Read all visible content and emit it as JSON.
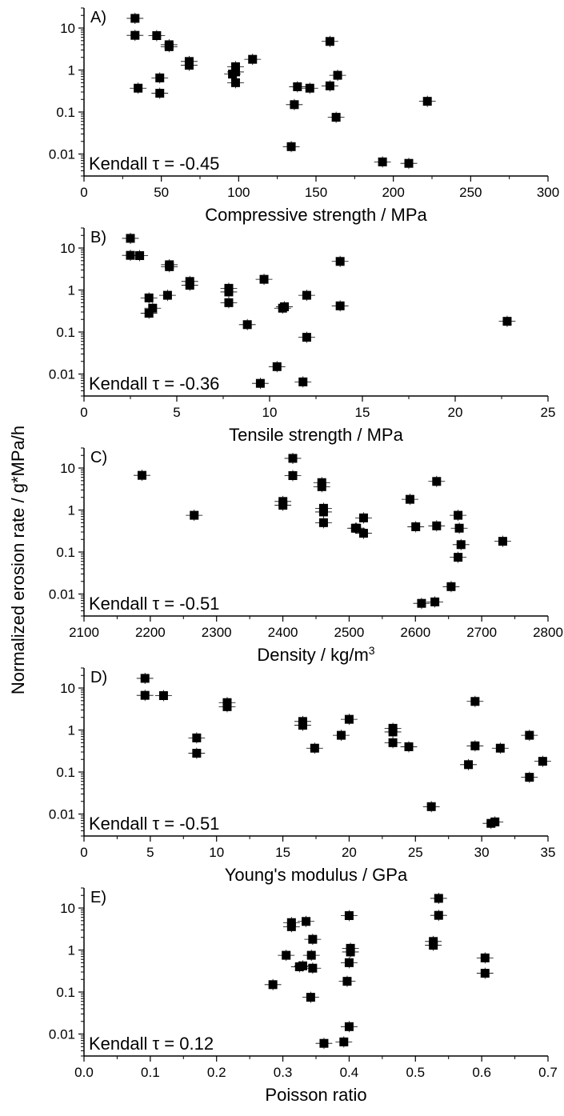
{
  "shared_ylabel": "Normalized erosion rate / g*MPa/h",
  "chart_data": [
    {
      "type": "scatter",
      "panel_label": "A)",
      "xlabel": "Compressive strength / MPa",
      "xlim": [
        0,
        300
      ],
      "xticks": [
        "0",
        "50",
        "100",
        "150",
        "200",
        "250",
        "300"
      ],
      "ylim": [
        0.003,
        30
      ],
      "yscale": "log",
      "yticks": [
        "0.01",
        "0.1",
        "1",
        "10"
      ],
      "annotation": "Kendall τ = -0.45",
      "points": [
        {
          "x": 33,
          "y": 17
        },
        {
          "x": 33,
          "y": 6.7
        },
        {
          "x": 35,
          "y": 0.37
        },
        {
          "x": 47,
          "y": 6.6
        },
        {
          "x": 49,
          "y": 0.65
        },
        {
          "x": 49,
          "y": 0.28
        },
        {
          "x": 55,
          "y": 4.0
        },
        {
          "x": 55,
          "y": 3.6
        },
        {
          "x": 68,
          "y": 1.6
        },
        {
          "x": 68,
          "y": 1.3
        },
        {
          "x": 96,
          "y": 0.8
        },
        {
          "x": 98,
          "y": 1.2
        },
        {
          "x": 98,
          "y": 0.9
        },
        {
          "x": 98,
          "y": 0.5
        },
        {
          "x": 109,
          "y": 1.8
        },
        {
          "x": 134,
          "y": 0.015
        },
        {
          "x": 136,
          "y": 0.15
        },
        {
          "x": 138,
          "y": 0.4
        },
        {
          "x": 146,
          "y": 0.37
        },
        {
          "x": 159,
          "y": 4.8
        },
        {
          "x": 159,
          "y": 0.42
        },
        {
          "x": 163,
          "y": 0.075
        },
        {
          "x": 164,
          "y": 0.75
        },
        {
          "x": 193,
          "y": 0.0065
        },
        {
          "x": 210,
          "y": 0.006
        },
        {
          "x": 222,
          "y": 0.18
        }
      ]
    },
    {
      "type": "scatter",
      "panel_label": "B)",
      "xlabel": "Tensile strength / MPa",
      "xlim": [
        0,
        25
      ],
      "xticks": [
        "0",
        "5",
        "10",
        "15",
        "20",
        "25"
      ],
      "ylim": [
        0.003,
        30
      ],
      "yscale": "log",
      "yticks": [
        "0.01",
        "0.1",
        "1",
        "10"
      ],
      "annotation": "Kendall τ = -0.36",
      "points": [
        {
          "x": 2.5,
          "y": 17
        },
        {
          "x": 2.5,
          "y": 6.7
        },
        {
          "x": 3.0,
          "y": 6.6
        },
        {
          "x": 3.5,
          "y": 0.65
        },
        {
          "x": 3.5,
          "y": 0.28
        },
        {
          "x": 3.7,
          "y": 0.37
        },
        {
          "x": 4.6,
          "y": 4.0
        },
        {
          "x": 4.6,
          "y": 3.6
        },
        {
          "x": 4.5,
          "y": 0.75
        },
        {
          "x": 5.7,
          "y": 1.6
        },
        {
          "x": 5.7,
          "y": 1.3
        },
        {
          "x": 7.8,
          "y": 1.1
        },
        {
          "x": 7.8,
          "y": 0.9
        },
        {
          "x": 7.8,
          "y": 0.5
        },
        {
          "x": 9.7,
          "y": 1.8
        },
        {
          "x": 8.8,
          "y": 0.15
        },
        {
          "x": 9.5,
          "y": 0.006
        },
        {
          "x": 10.4,
          "y": 0.015
        },
        {
          "x": 10.8,
          "y": 0.4
        },
        {
          "x": 10.7,
          "y": 0.37
        },
        {
          "x": 11.8,
          "y": 0.0065
        },
        {
          "x": 12.0,
          "y": 0.75
        },
        {
          "x": 12.0,
          "y": 0.075
        },
        {
          "x": 13.8,
          "y": 4.8
        },
        {
          "x": 13.8,
          "y": 0.42
        },
        {
          "x": 22.8,
          "y": 0.18
        }
      ]
    },
    {
      "type": "scatter",
      "panel_label": "C)",
      "xlabel": "Density / kg/m",
      "xlabel_sup": "3",
      "xlim": [
        2050,
        2850
      ],
      "xticks": [
        "2100",
        "2200",
        "2300",
        "2400",
        "2500",
        "2600",
        "2700",
        "2800"
      ],
      "ylim": [
        0.003,
        30
      ],
      "yscale": "log",
      "yticks": [
        "0.01",
        "0.1",
        "1",
        "10"
      ],
      "annotation": "Kendall τ = -0.51",
      "points": [
        {
          "x": 2150,
          "y": 6.7
        },
        {
          "x": 2240,
          "y": 0.75
        },
        {
          "x": 2393,
          "y": 1.6
        },
        {
          "x": 2393,
          "y": 1.3
        },
        {
          "x": 2410,
          "y": 17
        },
        {
          "x": 2410,
          "y": 6.6
        },
        {
          "x": 2460,
          "y": 4.5
        },
        {
          "x": 2460,
          "y": 3.6
        },
        {
          "x": 2463,
          "y": 1.1
        },
        {
          "x": 2463,
          "y": 0.9
        },
        {
          "x": 2463,
          "y": 0.5
        },
        {
          "x": 2518,
          "y": 0.37
        },
        {
          "x": 2520,
          "y": 0.37
        },
        {
          "x": 2532,
          "y": 0.65
        },
        {
          "x": 2532,
          "y": 0.28
        },
        {
          "x": 2612,
          "y": 1.8
        },
        {
          "x": 2622,
          "y": 0.4
        },
        {
          "x": 2632,
          "y": 0.006
        },
        {
          "x": 2658,
          "y": 4.8
        },
        {
          "x": 2658,
          "y": 0.42
        },
        {
          "x": 2655,
          "y": 0.0065
        },
        {
          "x": 2683,
          "y": 0.015
        },
        {
          "x": 2695,
          "y": 0.75
        },
        {
          "x": 2697,
          "y": 0.37
        },
        {
          "x": 2695,
          "y": 0.075
        },
        {
          "x": 2700,
          "y": 0.15
        },
        {
          "x": 2772,
          "y": 0.18
        }
      ]
    },
    {
      "type": "scatter",
      "panel_label": "D)",
      "xlabel": "Young's modulus / GPa",
      "xlim": [
        0,
        35
      ],
      "xticks": [
        "0",
        "5",
        "10",
        "15",
        "20",
        "25",
        "30",
        "35"
      ],
      "ylim": [
        0.003,
        30
      ],
      "yscale": "log",
      "yticks": [
        "0.01",
        "0.1",
        "1",
        "10"
      ],
      "annotation": "Kendall τ = -0.51",
      "points": [
        {
          "x": 4.6,
          "y": 17
        },
        {
          "x": 4.6,
          "y": 6.7
        },
        {
          "x": 6.0,
          "y": 6.6
        },
        {
          "x": 8.5,
          "y": 0.65
        },
        {
          "x": 8.5,
          "y": 0.28
        },
        {
          "x": 10.8,
          "y": 4.5
        },
        {
          "x": 10.8,
          "y": 3.6
        },
        {
          "x": 16.5,
          "y": 1.6
        },
        {
          "x": 16.5,
          "y": 1.3
        },
        {
          "x": 17.4,
          "y": 0.37
        },
        {
          "x": 19.4,
          "y": 0.75
        },
        {
          "x": 20.0,
          "y": 1.8
        },
        {
          "x": 23.3,
          "y": 1.1
        },
        {
          "x": 23.3,
          "y": 0.9
        },
        {
          "x": 23.3,
          "y": 0.5
        },
        {
          "x": 24.5,
          "y": 0.4
        },
        {
          "x": 26.2,
          "y": 0.015
        },
        {
          "x": 29.0,
          "y": 0.15
        },
        {
          "x": 29.5,
          "y": 4.8
        },
        {
          "x": 29.5,
          "y": 0.42
        },
        {
          "x": 30.7,
          "y": 0.006
        },
        {
          "x": 31.0,
          "y": 0.0065
        },
        {
          "x": 31.4,
          "y": 0.37
        },
        {
          "x": 33.6,
          "y": 0.75
        },
        {
          "x": 33.6,
          "y": 0.075
        },
        {
          "x": 34.6,
          "y": 0.18
        }
      ]
    },
    {
      "type": "scatter",
      "panel_label": "E)",
      "xlabel": "Poisson ratio",
      "xlim": [
        0.0,
        0.7
      ],
      "xticks": [
        "0.0",
        "0.1",
        "0.2",
        "0.3",
        "0.4",
        "0.5",
        "0.6",
        "0.7"
      ],
      "ylim": [
        0.003,
        30
      ],
      "yscale": "log",
      "yticks": [
        "0.01",
        "0.1",
        "1",
        "10"
      ],
      "annotation": "Kendall τ = 0.12",
      "points": [
        {
          "x": 0.535,
          "y": 17
        },
        {
          "x": 0.535,
          "y": 6.7
        },
        {
          "x": 0.4,
          "y": 6.6
        },
        {
          "x": 0.313,
          "y": 4.5
        },
        {
          "x": 0.313,
          "y": 3.6
        },
        {
          "x": 0.335,
          "y": 4.8
        },
        {
          "x": 0.345,
          "y": 1.8
        },
        {
          "x": 0.527,
          "y": 1.6
        },
        {
          "x": 0.527,
          "y": 1.3
        },
        {
          "x": 0.402,
          "y": 1.1
        },
        {
          "x": 0.402,
          "y": 0.9
        },
        {
          "x": 0.4,
          "y": 0.5
        },
        {
          "x": 0.305,
          "y": 0.75
        },
        {
          "x": 0.343,
          "y": 0.75
        },
        {
          "x": 0.325,
          "y": 0.4
        },
        {
          "x": 0.33,
          "y": 0.42
        },
        {
          "x": 0.345,
          "y": 0.37
        },
        {
          "x": 0.605,
          "y": 0.65
        },
        {
          "x": 0.605,
          "y": 0.28
        },
        {
          "x": 0.285,
          "y": 0.15
        },
        {
          "x": 0.397,
          "y": 0.18
        },
        {
          "x": 0.342,
          "y": 0.075
        },
        {
          "x": 0.4,
          "y": 0.015
        },
        {
          "x": 0.362,
          "y": 0.006
        },
        {
          "x": 0.392,
          "y": 0.0065
        }
      ]
    }
  ]
}
